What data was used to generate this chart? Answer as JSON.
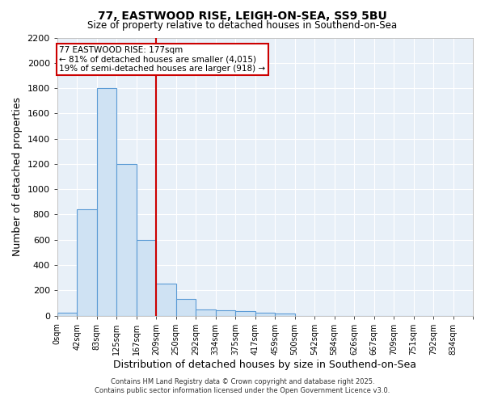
{
  "title1": "77, EASTWOOD RISE, LEIGH-ON-SEA, SS9 5BU",
  "title2": "Size of property relative to detached houses in Southend-on-Sea",
  "xlabel": "Distribution of detached houses by size in Southend-on-Sea",
  "ylabel": "Number of detached properties",
  "footer1": "Contains HM Land Registry data © Crown copyright and database right 2025.",
  "footer2": "Contains public sector information licensed under the Open Government Licence v3.0.",
  "bin_labels": [
    "0sqm",
    "42sqm",
    "83sqm",
    "125sqm",
    "167sqm",
    "209sqm",
    "250sqm",
    "292sqm",
    "334sqm",
    "375sqm",
    "417sqm",
    "459sqm",
    "500sqm",
    "542sqm",
    "584sqm",
    "626sqm",
    "667sqm",
    "709sqm",
    "751sqm",
    "792sqm",
    "834sqm"
  ],
  "bar_heights": [
    25,
    840,
    1800,
    1200,
    600,
    255,
    130,
    50,
    40,
    35,
    25,
    15,
    0,
    0,
    0,
    0,
    0,
    0,
    0,
    0,
    0
  ],
  "bar_color": "#cfe2f3",
  "bar_edge_color": "#5b9bd5",
  "annotation_line1": "77 EASTWOOD RISE: 177sqm",
  "annotation_line2": "← 81% of detached houses are smaller (4,015)",
  "annotation_line3": "19% of semi-detached houses are larger (918) →",
  "annotation_box_color": "#ffffff",
  "annotation_box_edge_color": "#cc0000",
  "red_line_color": "#cc0000",
  "ylim": [
    0,
    2200
  ],
  "yticks": [
    0,
    200,
    400,
    600,
    800,
    1000,
    1200,
    1400,
    1600,
    1800,
    2000,
    2200
  ],
  "background_color": "#ffffff",
  "plot_bg_color": "#e8f0f8",
  "grid_color": "#ffffff"
}
